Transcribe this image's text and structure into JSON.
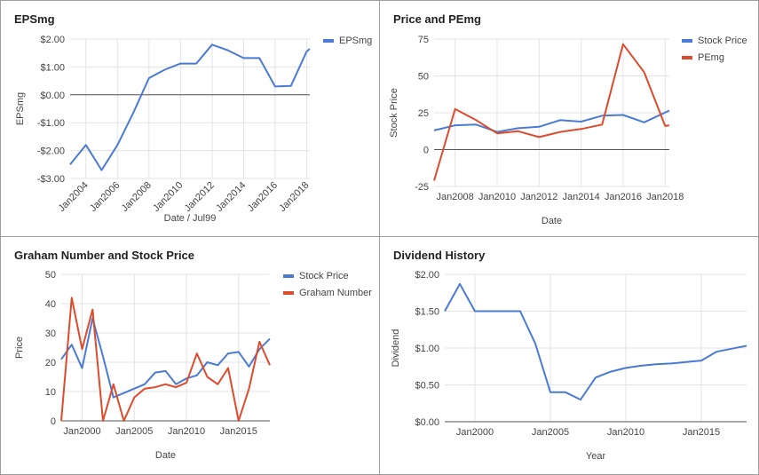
{
  "colors": {
    "blue": "#4a7bd4",
    "red": "#de4b2c",
    "grid": "#e3e3e3",
    "baseline": "#555555",
    "text": "#444444"
  },
  "chart_data": [
    {
      "type": "line",
      "title": "EPSmg",
      "xlabel": "Date / Jul99",
      "ylabel": "EPSmg",
      "xlim": [
        2003,
        2018.2
      ],
      "ylim": [
        -3,
        2
      ],
      "x_ticks": [
        2004,
        2006,
        2008,
        2010,
        2012,
        2014,
        2016,
        2018
      ],
      "x_tick_labels": [
        "Jan2004",
        "Jan2006",
        "Jan2008",
        "Jan2010",
        "Jan2012",
        "Jan2014",
        "Jan2016",
        "Jan2018"
      ],
      "x_tick_rotate": true,
      "y_ticks": [
        -3,
        -2,
        -1,
        0,
        1,
        2
      ],
      "y_tick_labels": [
        "-$3.00",
        "-$2.00",
        "-$1.00",
        "$0.00",
        "$1.00",
        "$2.00"
      ],
      "baseline": 0,
      "legend": "top-right",
      "series": [
        {
          "name": "EPSmg",
          "color": "blue",
          "x": [
            2003,
            2004,
            2005,
            2006,
            2007,
            2008,
            2009,
            2010,
            2011,
            2012,
            2013,
            2014,
            2015,
            2016,
            2017,
            2018,
            2018.2
          ],
          "y": [
            -2.5,
            -1.8,
            -2.7,
            -1.8,
            -0.65,
            0.6,
            0.9,
            1.12,
            1.12,
            1.8,
            1.6,
            1.32,
            1.32,
            0.3,
            0.32,
            1.55,
            1.65
          ]
        }
      ]
    },
    {
      "type": "line",
      "title": "Price and PEmg",
      "xlabel": "Date",
      "ylabel": "Stock Price",
      "xlim": [
        2007,
        2018.2
      ],
      "ylim": [
        -25,
        75
      ],
      "x_ticks": [
        2008,
        2010,
        2012,
        2014,
        2016,
        2018
      ],
      "x_tick_labels": [
        "Jan2008",
        "Jan2010",
        "Jan2012",
        "Jan2014",
        "Jan2016",
        "Jan2018"
      ],
      "x_tick_rotate": false,
      "y_ticks": [
        -25,
        0,
        25,
        50,
        75
      ],
      "y_tick_labels": [
        "-25",
        "0",
        "25",
        "50",
        "75"
      ],
      "baseline": 0,
      "legend": "top-right",
      "series": [
        {
          "name": "Stock Price",
          "color": "blue",
          "x": [
            2007,
            2008,
            2009,
            2010,
            2011,
            2012,
            2013,
            2014,
            2015,
            2016,
            2017,
            2018.2
          ],
          "y": [
            13,
            16.5,
            17,
            12,
            14.5,
            15.5,
            20,
            19,
            23,
            23.5,
            18.5,
            26.5
          ]
        },
        {
          "name": "PEmg",
          "color": "red",
          "x": [
            2007,
            2008,
            2009,
            2010,
            2011,
            2012,
            2013,
            2014,
            2015,
            2016,
            2017,
            2018,
            2018.2
          ],
          "y": [
            -21,
            27.5,
            20,
            11,
            12.5,
            8.5,
            12,
            14,
            17,
            71.5,
            52.5,
            16,
            16.5
          ]
        }
      ]
    },
    {
      "type": "line",
      "title": "Graham Number and Stock Price",
      "xlabel": "Date",
      "ylabel": "Price",
      "xlim": [
        1998,
        2018
      ],
      "ylim": [
        0,
        50
      ],
      "x_ticks": [
        2000,
        2005,
        2010,
        2015
      ],
      "x_tick_labels": [
        "Jan2000",
        "Jan2005",
        "Jan2010",
        "Jan2015"
      ],
      "x_tick_rotate": false,
      "y_ticks": [
        0,
        10,
        20,
        30,
        40,
        50
      ],
      "y_tick_labels": [
        "0",
        "10",
        "20",
        "30",
        "40",
        "50"
      ],
      "baseline": 0,
      "legend": "top-right",
      "series": [
        {
          "name": "Stock Price",
          "color": "blue",
          "x": [
            1998,
            1999,
            2000,
            2001,
            2002,
            2003,
            2004,
            2005,
            2006,
            2007,
            2008,
            2009,
            2010,
            2011,
            2012,
            2013,
            2014,
            2015,
            2016,
            2017,
            2018
          ],
          "y": [
            21,
            26,
            18,
            35,
            22,
            8,
            9.5,
            11,
            12.5,
            16.5,
            17,
            12.5,
            14.5,
            15.5,
            20,
            19,
            23,
            23.5,
            18.5,
            24.5,
            28
          ]
        },
        {
          "name": "Graham Number",
          "color": "red",
          "x": [
            1998,
            1999,
            2000,
            2001,
            2002,
            2003,
            2004,
            2005,
            2006,
            2007,
            2008,
            2009,
            2010,
            2011,
            2012,
            2013,
            2014,
            2015,
            2016,
            2017,
            2018
          ],
          "y": [
            0,
            42,
            24.5,
            38,
            0,
            12.5,
            0,
            8,
            11,
            11.5,
            12.5,
            11.5,
            13,
            23,
            15,
            12.5,
            18,
            0,
            11,
            27,
            19
          ]
        }
      ]
    },
    {
      "type": "line",
      "title": "Dividend History",
      "xlabel": "Year",
      "ylabel": "Dividend",
      "xlim": [
        1998,
        2018
      ],
      "ylim": [
        0,
        2
      ],
      "x_ticks": [
        2000,
        2005,
        2010,
        2015
      ],
      "x_tick_labels": [
        "Jan2000",
        "Jan2005",
        "Jan2010",
        "Jan2015"
      ],
      "x_tick_rotate": false,
      "y_ticks": [
        0,
        0.5,
        1,
        1.5,
        2
      ],
      "y_tick_labels": [
        "$0.00",
        "$0.50",
        "$1.00",
        "$1.50",
        "$2.00"
      ],
      "baseline": 0,
      "legend": "none",
      "series": [
        {
          "name": "",
          "color": "blue",
          "x": [
            1998,
            1999,
            2000,
            2001,
            2002,
            2003,
            2004,
            2005,
            2006,
            2007,
            2008,
            2009,
            2010,
            2011,
            2012,
            2013,
            2014,
            2015,
            2016,
            2017,
            2018
          ],
          "y": [
            1.5,
            1.87,
            1.5,
            1.5,
            1.5,
            1.5,
            1.06,
            0.4,
            0.4,
            0.3,
            0.6,
            0.68,
            0.73,
            0.76,
            0.78,
            0.79,
            0.81,
            0.83,
            0.95,
            0.99,
            1.03
          ]
        }
      ]
    }
  ]
}
